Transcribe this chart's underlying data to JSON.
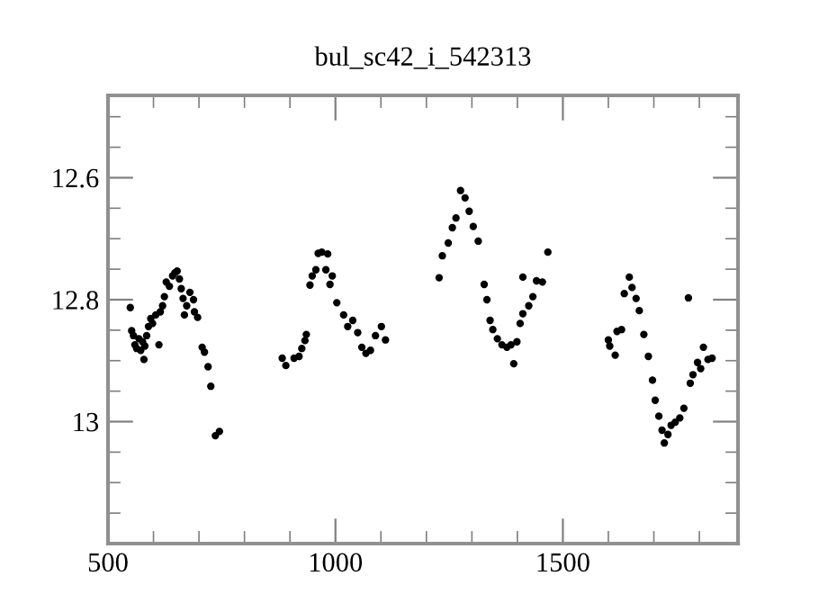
{
  "chart_data": {
    "type": "scatter",
    "title": "bul_sc42_i_542313",
    "marker": "circle",
    "grid": false,
    "xlim": [
      500,
      1885
    ],
    "ylim": [
      13.2,
      12.465
    ],
    "xticks": [
      500,
      {
        "value": 600,
        "label": null
      },
      {
        "value": 700,
        "label": null
      },
      {
        "value": 800,
        "label": null
      },
      {
        "value": 900,
        "label": null
      },
      1000,
      {
        "value": 1100,
        "label": null
      },
      {
        "value": 1200,
        "label": null
      },
      {
        "value": 1300,
        "label": null
      },
      {
        "value": 1400,
        "label": null
      },
      1500,
      {
        "value": 1600,
        "label": null
      },
      {
        "value": 1700,
        "label": null
      },
      {
        "value": 1800,
        "label": null
      }
    ],
    "yticks": [
      {
        "value": 12.5,
        "label": null
      },
      {
        "value": 12.55,
        "label": null
      },
      12.6,
      {
        "value": 12.65,
        "label": null
      },
      {
        "value": 12.7,
        "label": null
      },
      {
        "value": 12.75,
        "label": null
      },
      12.8,
      {
        "value": 12.85,
        "label": null
      },
      {
        "value": 12.9,
        "label": null
      },
      {
        "value": 12.95,
        "label": null
      },
      13,
      {
        "value": 13.05,
        "label": null
      },
      {
        "value": 13.1,
        "label": null
      },
      {
        "value": 13.15,
        "label": null
      }
    ],
    "series": [
      {
        "color": "#000000",
        "x": [
          549,
          552,
          556,
          559,
          563,
          568,
          572,
          576,
          579,
          581,
          585,
          589,
          594,
          598,
          605,
          612,
          615,
          620,
          624,
          628,
          635,
          642,
          647,
          652,
          657,
          661,
          665,
          668,
          673,
          680,
          688,
          690,
          697,
          707,
          712,
          720,
          726,
          736,
          745,
          883,
          891,
          909,
          920,
          926,
          933,
          936,
          944,
          949,
          957,
          962,
          970,
          979,
          983,
          988,
          993,
          1003,
          1018,
          1027,
          1038,
          1049,
          1058,
          1067,
          1077,
          1088,
          1101,
          1110,
          1228,
          1235,
          1248,
          1257,
          1265,
          1275,
          1285,
          1294,
          1303,
          1314,
          1327,
          1333,
          1340,
          1346,
          1356,
          1366,
          1377,
          1386,
          1392,
          1399,
          1406,
          1412,
          1412,
          1425,
          1434,
          1442,
          1455,
          1467,
          1600,
          1603,
          1615,
          1619,
          1629,
          1635,
          1646,
          1652,
          1661,
          1668,
          1678,
          1688,
          1697,
          1703,
          1711,
          1718,
          1723,
          1731,
          1738,
          1747,
          1757,
          1766,
          1776,
          1780,
          1786,
          1796,
          1803,
          1809,
          1819,
          1828
        ],
        "values": [
          12.813,
          12.851,
          12.859,
          12.874,
          12.88,
          12.864,
          12.883,
          12.869,
          12.898,
          12.876,
          12.859,
          12.844,
          12.831,
          12.839,
          12.825,
          12.874,
          12.82,
          12.81,
          12.795,
          12.771,
          12.778,
          12.761,
          12.756,
          12.753,
          12.766,
          12.782,
          12.798,
          12.825,
          12.81,
          12.788,
          12.8,
          12.82,
          12.829,
          12.878,
          12.886,
          12.91,
          12.942,
          13.023,
          13.016,
          12.896,
          12.908,
          12.896,
          12.893,
          12.88,
          12.867,
          12.857,
          12.776,
          12.761,
          12.751,
          12.724,
          12.722,
          12.751,
          12.725,
          12.775,
          12.761,
          12.805,
          12.825,
          12.844,
          12.834,
          12.854,
          12.878,
          12.888,
          12.883,
          12.859,
          12.844,
          12.866,
          12.764,
          12.728,
          12.707,
          12.682,
          12.666,
          12.621,
          12.633,
          12.655,
          12.68,
          12.704,
          12.775,
          12.8,
          12.834,
          12.849,
          12.864,
          12.874,
          12.878,
          12.874,
          12.905,
          12.869,
          12.839,
          12.823,
          12.763,
          12.81,
          12.795,
          12.769,
          12.771,
          12.722,
          12.866,
          12.876,
          12.891,
          12.852,
          12.849,
          12.79,
          12.763,
          12.78,
          12.798,
          12.818,
          12.857,
          12.893,
          12.932,
          12.965,
          12.991,
          13.014,
          13.035,
          13.021,
          13.006,
          13.001,
          12.994,
          12.978,
          12.797,
          12.937,
          12.923,
          12.903,
          12.913,
          12.878,
          12.898,
          12.896
        ]
      }
    ]
  }
}
